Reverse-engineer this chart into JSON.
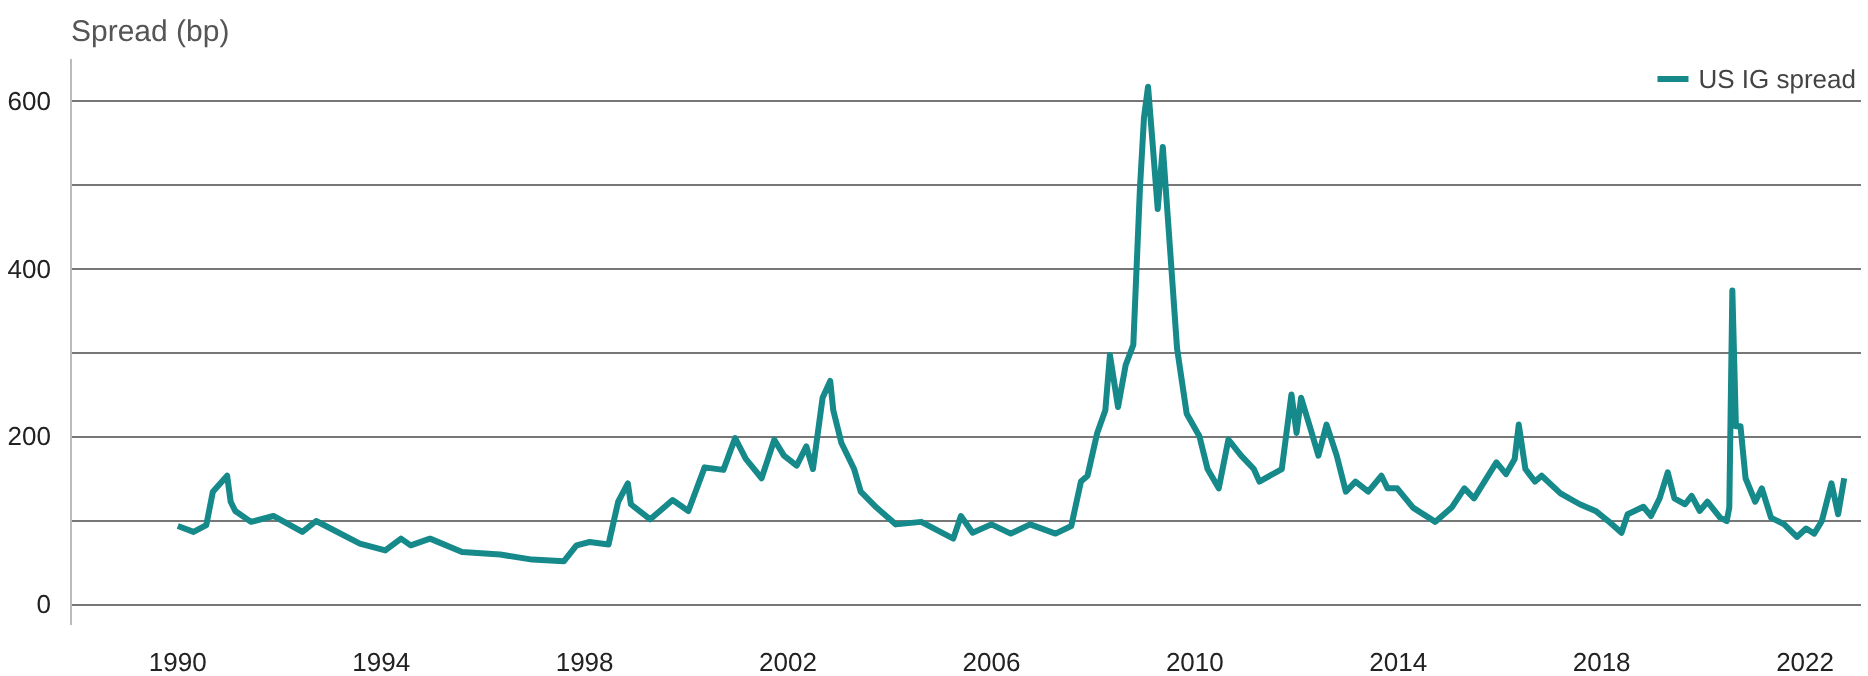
{
  "chart_data": {
    "type": "line",
    "ylabel": "Spread (bp)",
    "xlim": [
      1987.9,
      2023.1
    ],
    "xticks": [
      1990,
      1994,
      1998,
      2002,
      2006,
      2010,
      2014,
      2018,
      2022
    ],
    "ylim": [
      -25,
      650
    ],
    "yticks": [
      0,
      {
        "value": 100,
        "label": null
      },
      200,
      {
        "value": 300,
        "label": null
      },
      400,
      {
        "value": 500,
        "label": null
      },
      600
    ],
    "grid": "y",
    "legend": "top right",
    "marker": "none",
    "line_style": "solid",
    "series": [
      {
        "name": "US IG spread",
        "color": "#16898a",
        "x": [
          1990.0,
          1990.31,
          1990.56,
          1990.69,
          1990.97,
          1991.04,
          1991.13,
          1991.44,
          1991.88,
          1992.45,
          1992.72,
          1993.58,
          1994.08,
          1994.39,
          1994.58,
          1994.96,
          1995.59,
          1996.34,
          1996.97,
          1997.59,
          1997.84,
          1998.1,
          1998.47,
          1998.66,
          1998.85,
          1998.91,
          1999.29,
          1999.73,
          2000.04,
          2000.36,
          2000.73,
          2000.96,
          2001.17,
          2001.48,
          2001.73,
          2001.92,
          2002.17,
          2002.36,
          2002.49,
          2002.68,
          2002.83,
          2002.89,
          2003.05,
          2003.3,
          2003.43,
          2003.74,
          2004.12,
          2004.62,
          2005.25,
          2005.4,
          2005.63,
          2006.0,
          2006.38,
          2006.76,
          2007.26,
          2007.57,
          2007.76,
          2007.89,
          2008.08,
          2008.24,
          2008.33,
          2008.49,
          2008.64,
          2008.79,
          2008.92,
          2009.0,
          2009.08,
          2009.17,
          2009.27,
          2009.37,
          2009.52,
          2009.65,
          2009.84,
          2010.09,
          2010.25,
          2010.47,
          2010.66,
          2010.91,
          2011.16,
          2011.27,
          2011.71,
          2011.9,
          2012.0,
          2012.09,
          2012.28,
          2012.43,
          2012.59,
          2012.79,
          2012.97,
          2013.16,
          2013.41,
          2013.67,
          2013.79,
          2013.98,
          2014.29,
          2014.73,
          2015.05,
          2015.3,
          2015.49,
          2015.93,
          2016.12,
          2016.29,
          2016.37,
          2016.5,
          2016.69,
          2016.82,
          2017.19,
          2017.57,
          2017.88,
          2018.13,
          2018.39,
          2018.51,
          2018.82,
          2018.97,
          2019.14,
          2019.3,
          2019.43,
          2019.64,
          2019.77,
          2019.93,
          2020.08,
          2020.33,
          2020.46,
          2020.51,
          2020.57,
          2020.64,
          2020.73,
          2020.83,
          2021.02,
          2021.15,
          2021.33,
          2021.59,
          2021.84,
          2022.02,
          2022.18,
          2022.33,
          2022.52,
          2022.65,
          2022.77
        ],
        "values": [
          93,
          86,
          94,
          134,
          153,
          122,
          111,
          98,
          105,
          86,
          99,
          72,
          64,
          78,
          70,
          78,
          62,
          59,
          53,
          51,
          70,
          74,
          71,
          122,
          144,
          119,
          101,
          124,
          111,
          163,
          160,
          198,
          173,
          150,
          196,
          177,
          165,
          188,
          161,
          246,
          266,
          231,
          192,
          161,
          134,
          115,
          95,
          98,
          78,
          105,
          85,
          95,
          84,
          95,
          84,
          93,
          146,
          153,
          204,
          231,
          297,
          235,
          285,
          309,
          495,
          580,
          617,
          549,
          471,
          545,
          417,
          305,
          227,
          200,
          161,
          138,
          196,
          177,
          161,
          146,
          161,
          250,
          204,
          246,
          208,
          177,
          214,
          177,
          134,
          146,
          134,
          153,
          138,
          138,
          115,
          98,
          115,
          138,
          126,
          169,
          155,
          173,
          214,
          161,
          146,
          153,
          132,
          119,
          111,
          99,
          85,
          107,
          116,
          105,
          126,
          157,
          126,
          119,
          129,
          111,
          122,
          103,
          99,
          115,
          374,
          212,
          212,
          150,
          122,
          138,
          103,
          95,
          80,
          90,
          84,
          99,
          144,
          107,
          150
        ]
      }
    ]
  }
}
